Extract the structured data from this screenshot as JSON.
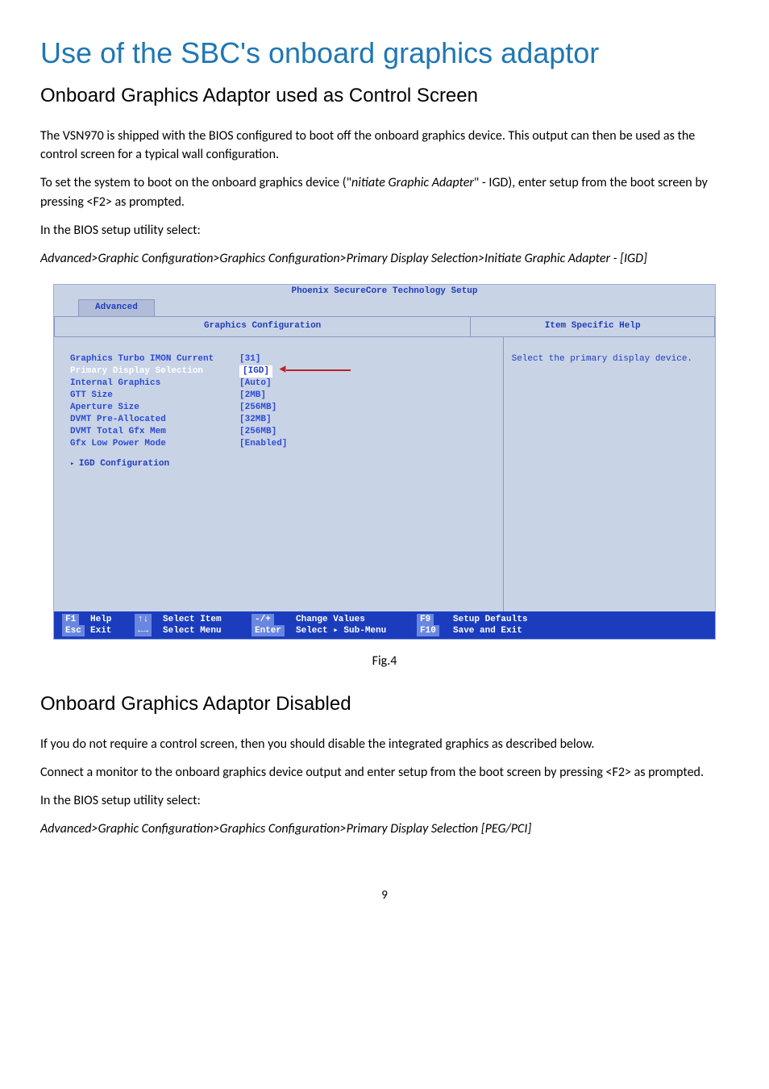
{
  "title": "Use of the SBC's onboard graphics adaptor",
  "section1": {
    "heading": "Onboard Graphics Adaptor used as Control Screen",
    "p1a": "The VSN970 is shipped with the BIOS configured to boot off the onboard graphics device.  This output can then be used as the control screen for a typical wall configuration.",
    "p2a": "To set the system to boot on the onboard graphics device (\"",
    "p2b": "nitiate Graphic Adapter",
    "p2c": "\" - IGD), enter setup from the boot screen by pressing <F2> as prompted.",
    "p3": "In the BIOS setup utility select:",
    "p4": "Advanced>Graphic Configuration>Graphics Configuration>Primary Display Selection>Initiate Graphic Adapter - [IGD]"
  },
  "bios": {
    "top": "Phoenix SecureCore Technology Setup",
    "tab": "Advanced",
    "panel_title": "Graphics Configuration",
    "help_title": "Item Specific Help",
    "help_text": "Select the primary display device.",
    "rows": [
      {
        "label": "Graphics Turbo IMON Current",
        "value": "[31]",
        "selected": false
      },
      {
        "label": "",
        "value": "",
        "selected": false
      },
      {
        "label": "Primary Display Selection",
        "value": "IGD",
        "selected": true
      },
      {
        "label": "Internal Graphics",
        "value": "[Auto]",
        "selected": false
      },
      {
        "label": "GTT Size",
        "value": "[2MB]",
        "selected": false
      },
      {
        "label": "Aperture Size",
        "value": "[256MB]",
        "selected": false
      },
      {
        "label": "DVMT Pre-Allocated",
        "value": "[32MB]",
        "selected": false
      },
      {
        "label": "DVMT Total Gfx Mem",
        "value": "[256MB]",
        "selected": false
      },
      {
        "label": "Gfx Low Power Mode",
        "value": "[Enabled]",
        "selected": false
      }
    ],
    "sublink": "IGD Configuration",
    "footer": {
      "k1": "F1",
      "a1": "Help",
      "k2": "↑↓",
      "a2": "Select Item",
      "k3": "-/+",
      "a3": "Change Values",
      "k4": "F9",
      "a4": "Setup Defaults",
      "k5": "Esc",
      "a5": "Exit",
      "k6": "←→",
      "a6": "Select Menu",
      "k7": "Enter",
      "a7": "Select ▸ Sub-Menu",
      "k8": "F10",
      "a8": "Save and Exit"
    }
  },
  "fig_caption": "Fig.4",
  "section2": {
    "heading": "Onboard Graphics Adaptor Disabled",
    "p1": "If you do not require a control screen, then you should disable the integrated graphics as described below.",
    "p2": "Connect a monitor to the onboard graphics device output and enter setup from the boot screen by pressing <F2> as prompted.",
    "p3": "In the BIOS setup utility select:",
    "p4": "Advanced>Graphic Configuration>Graphics Configuration>Primary Display Selection [PEG/PCI]"
  },
  "page_number": "9"
}
